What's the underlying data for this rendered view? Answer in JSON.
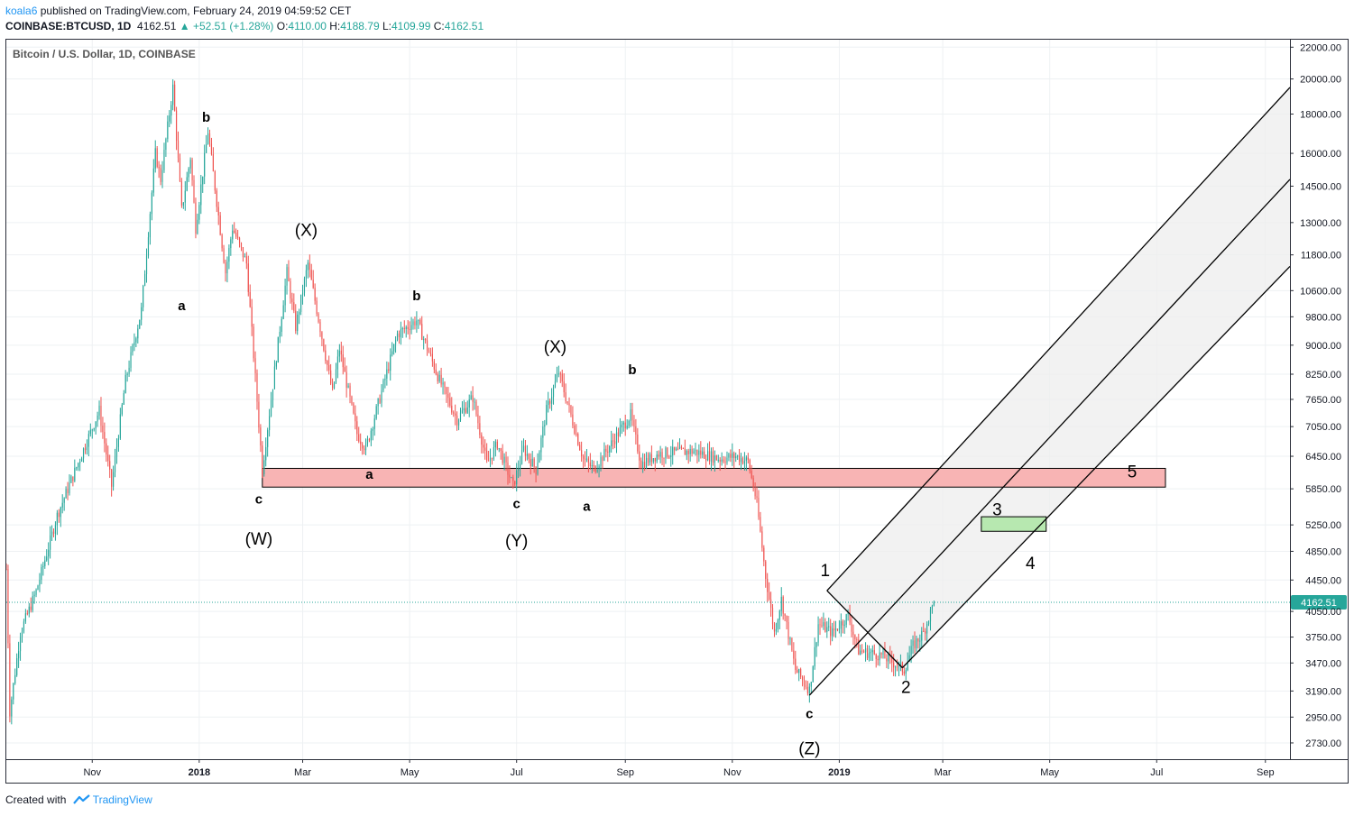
{
  "header": {
    "author": "koala6",
    "published_text": "published on TradingView.com, February 24, 2019 04:59:52 CET",
    "symbol": "COINBASE:BTCUSD, 1D",
    "last_price": "4162.51",
    "change": "+52.51 (+1.28%)",
    "open_label": "O:",
    "open": "4110.00",
    "high_label": "H:",
    "high": "4188.79",
    "low_label": "L:",
    "low": "4109.99",
    "close_label": "C:",
    "close": "4162.51"
  },
  "footer": {
    "created_with": "Created with",
    "brand": "TradingView"
  },
  "colors": {
    "up": "#26a69a",
    "down": "#ef5350",
    "zone_red": "#f8b4b4",
    "zone_green": "#b7e8b0",
    "channel_fill": "#eeeeee",
    "price_tag": "#26a69a"
  },
  "chart_data": {
    "type": "candlestick",
    "title": "Bitcoin / U.S. Dollar, 1D, COINBASE",
    "price_scale": "log",
    "ylim": [
      2600,
      22500
    ],
    "y_ticks": [
      2730,
      2950,
      3190,
      3470,
      3750,
      4050,
      4450,
      4850,
      5250,
      5850,
      6450,
      7050,
      7650,
      8250,
      9000,
      9800,
      10600,
      11800,
      13000,
      14500,
      16000,
      18000,
      20000,
      22000
    ],
    "y_tick_labels": [
      "2730.00",
      "2950.00",
      "3190.00",
      "3470.00",
      "3750.00",
      "4050.00",
      "4450.00",
      "4850.00",
      "5250.00",
      "5850.00",
      "6450.00",
      "7050.00",
      "7650.00",
      "8250.00",
      "9000.00",
      "9800.00",
      "10600.00",
      "11800.00",
      "13000.00",
      "14500.00",
      "16000.00",
      "18000.00",
      "20000.00",
      "22000.00"
    ],
    "x_ticks": [
      {
        "label": "Nov",
        "date": "2017-11-01",
        "bold": false
      },
      {
        "label": "2018",
        "date": "2018-01-01",
        "bold": true
      },
      {
        "label": "Mar",
        "date": "2018-03-01",
        "bold": false
      },
      {
        "label": "May",
        "date": "2018-05-01",
        "bold": false
      },
      {
        "label": "Jul",
        "date": "2018-07-01",
        "bold": false
      },
      {
        "label": "Sep",
        "date": "2018-09-01",
        "bold": false
      },
      {
        "label": "Nov",
        "date": "2018-11-01",
        "bold": false
      },
      {
        "label": "2019",
        "date": "2019-01-01",
        "bold": true
      },
      {
        "label": "Mar",
        "date": "2019-03-01",
        "bold": false
      },
      {
        "label": "May",
        "date": "2019-05-01",
        "bold": false
      },
      {
        "label": "Jul",
        "date": "2019-07-01",
        "bold": false
      },
      {
        "label": "Sep",
        "date": "2019-09-01",
        "bold": false
      }
    ],
    "x_range": [
      "2017-09-13",
      "2019-09-15"
    ],
    "last_price": 4162.51,
    "last_price_label": "4162.51",
    "price_anchors": [
      [
        "2017-09-13",
        4600
      ],
      [
        "2017-09-15",
        3000
      ],
      [
        "2017-09-21",
        3800
      ],
      [
        "2017-09-30",
        4300
      ],
      [
        "2017-10-12",
        5400
      ],
      [
        "2017-10-20",
        6000
      ],
      [
        "2017-11-05",
        7400
      ],
      [
        "2017-11-12",
        5900
      ],
      [
        "2017-11-20",
        8100
      ],
      [
        "2017-11-29",
        10000
      ],
      [
        "2017-12-07",
        16000
      ],
      [
        "2017-12-10",
        14800
      ],
      [
        "2017-12-17",
        19500
      ],
      [
        "2017-12-22",
        13500
      ],
      [
        "2017-12-27",
        15800
      ],
      [
        "2017-12-30",
        12800
      ],
      [
        "2018-01-06",
        17100
      ],
      [
        "2018-01-16",
        11200
      ],
      [
        "2018-01-20",
        12800
      ],
      [
        "2018-01-28",
        11500
      ],
      [
        "2018-02-06",
        6200
      ],
      [
        "2018-02-20",
        11200
      ],
      [
        "2018-02-25",
        9500
      ],
      [
        "2018-03-04",
        11500
      ],
      [
        "2018-03-18",
        7800
      ],
      [
        "2018-03-22",
        8900
      ],
      [
        "2018-04-01",
        6900
      ],
      [
        "2018-04-06",
        6600
      ],
      [
        "2018-04-24",
        9300
      ],
      [
        "2018-05-05",
        9700
      ],
      [
        "2018-05-18",
        8100
      ],
      [
        "2018-05-28",
        7200
      ],
      [
        "2018-06-06",
        7700
      ],
      [
        "2018-06-14",
        6300
      ],
      [
        "2018-06-20",
        6700
      ],
      [
        "2018-06-29",
        5900
      ],
      [
        "2018-07-05",
        6600
      ],
      [
        "2018-07-12",
        6200
      ],
      [
        "2018-07-18",
        7400
      ],
      [
        "2018-07-25",
        8300
      ],
      [
        "2018-08-08",
        6400
      ],
      [
        "2018-08-14",
        6200
      ],
      [
        "2018-08-24",
        6700
      ],
      [
        "2018-09-04",
        7300
      ],
      [
        "2018-09-10",
        6300
      ],
      [
        "2018-09-20",
        6500
      ],
      [
        "2018-10-10",
        6550
      ],
      [
        "2018-10-25",
        6400
      ],
      [
        "2018-11-03",
        6450
      ],
      [
        "2018-11-10",
        6350
      ],
      [
        "2018-11-15",
        5600
      ],
      [
        "2018-11-20",
        4500
      ],
      [
        "2018-11-25",
        3800
      ],
      [
        "2018-11-29",
        4200
      ],
      [
        "2018-12-07",
        3400
      ],
      [
        "2018-12-15",
        3200
      ],
      [
        "2018-12-20",
        3900
      ],
      [
        "2018-12-28",
        3800
      ],
      [
        "2019-01-06",
        4000
      ],
      [
        "2019-01-12",
        3600
      ],
      [
        "2019-01-25",
        3550
      ],
      [
        "2019-02-07",
        3400
      ],
      [
        "2019-02-12",
        3650
      ],
      [
        "2019-02-18",
        3800
      ],
      [
        "2019-02-24",
        4162.51
      ]
    ],
    "zones": [
      {
        "name": "red-zone",
        "from": "2018-02-06",
        "to": "2019-07-06",
        "low": 5880,
        "high": 6220,
        "color": "zone_red"
      },
      {
        "name": "green-zone",
        "from": "2019-03-23",
        "to": "2019-04-29",
        "low": 5150,
        "high": 5380,
        "color": "zone_green"
      }
    ],
    "channel": {
      "upper": [
        [
          "2018-12-25",
          4310
        ],
        [
          "2019-09-15",
          19500
        ]
      ],
      "middle": [
        [
          "2018-12-15",
          3150
        ],
        [
          "2019-09-15",
          14800
        ]
      ],
      "lower": [
        [
          "2019-02-06",
          3420
        ],
        [
          "2019-09-15",
          11400
        ]
      ],
      "diagonal": [
        [
          "2018-12-25",
          4310
        ],
        [
          "2019-02-06",
          3420
        ]
      ]
    },
    "annotations": [
      {
        "text": "b",
        "date": "2018-01-05",
        "price": 17600,
        "bold": true
      },
      {
        "text": "a",
        "date": "2017-12-22",
        "price": 10000,
        "bold": true
      },
      {
        "text": "(X)",
        "date": "2018-03-03",
        "price": 12500,
        "bold": false
      },
      {
        "text": "b",
        "date": "2018-05-05",
        "price": 10300,
        "bold": true
      },
      {
        "text": "(X)",
        "date": "2018-07-23",
        "price": 8800,
        "bold": false
      },
      {
        "text": "b",
        "date": "2018-09-05",
        "price": 8250,
        "bold": true
      },
      {
        "text": "a",
        "date": "2018-04-08",
        "price": 6030,
        "bold": true
      },
      {
        "text": "c",
        "date": "2018-02-04",
        "price": 5600,
        "bold": true
      },
      {
        "text": "(W)",
        "date": "2018-02-04",
        "price": 4950,
        "bold": false
      },
      {
        "text": "c",
        "date": "2018-07-01",
        "price": 5520,
        "bold": true
      },
      {
        "text": "(Y)",
        "date": "2018-07-01",
        "price": 4920,
        "bold": false
      },
      {
        "text": "a",
        "date": "2018-08-10",
        "price": 5480,
        "bold": true
      },
      {
        "text": "c",
        "date": "2018-12-15",
        "price": 2940,
        "bold": true
      },
      {
        "text": "(Z)",
        "date": "2018-12-15",
        "price": 2640,
        "bold": false
      },
      {
        "text": "1",
        "date": "2018-12-24",
        "price": 4500,
        "bold": false
      },
      {
        "text": "2",
        "date": "2019-02-08",
        "price": 3170,
        "bold": false
      },
      {
        "text": "3",
        "date": "2019-04-01",
        "price": 5400,
        "bold": false
      },
      {
        "text": "4",
        "date": "2019-04-20",
        "price": 4600,
        "bold": false
      },
      {
        "text": "5",
        "date": "2019-06-17",
        "price": 6050,
        "bold": false
      }
    ]
  }
}
